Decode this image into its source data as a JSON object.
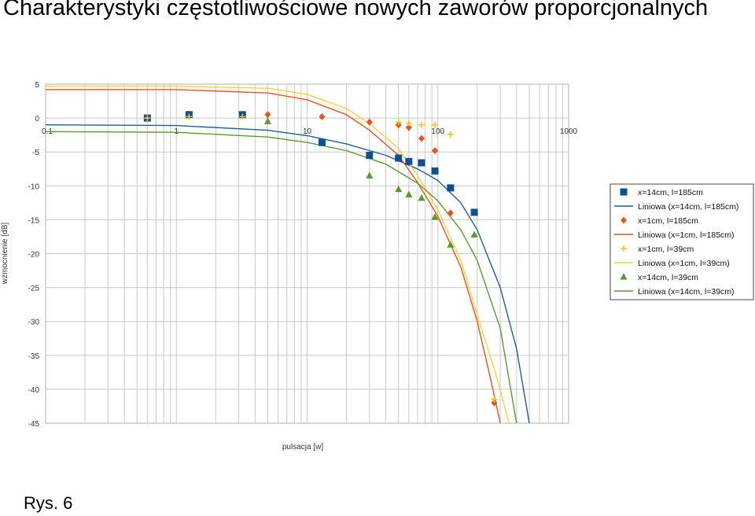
{
  "title": "Charakterystyki częstotliwościowe nowych zaworów proporcjonalnych",
  "caption": "Rys. 6",
  "chart_data": {
    "type": "scatter",
    "xlabel": "pulsacja [w]",
    "ylabel": "wzmocnienie [dB]",
    "xscale": "log",
    "xlim": [
      0.1,
      1000
    ],
    "ylim": [
      -45,
      5
    ],
    "x_ticks": [
      "0.1",
      "1",
      "10",
      "100",
      "1000"
    ],
    "y_ticks": [
      "5",
      "0",
      "-5",
      "-10",
      "-15",
      "-20",
      "-25",
      "-30",
      "-35",
      "-40",
      "-45"
    ],
    "grid": true,
    "legend_position": "right",
    "series": [
      {
        "name": "x=14cm, l=185cm",
        "kind": "points",
        "marker": "square",
        "color": "#0e4f8c",
        "points": [
          [
            0.6,
            0
          ],
          [
            1.25,
            0.5
          ],
          [
            3.2,
            0.5
          ],
          [
            13,
            -3.6
          ],
          [
            30,
            -5.5
          ],
          [
            50,
            -5.9
          ],
          [
            60,
            -6.4
          ],
          [
            75,
            -6.6
          ],
          [
            95,
            -7.8
          ],
          [
            125,
            -10.3
          ],
          [
            190,
            -13.9
          ]
        ]
      },
      {
        "name": "Liniowa (x=14cm, l=185cm)",
        "kind": "line",
        "color": "#1f5e96",
        "points": [
          [
            0.1,
            -1
          ],
          [
            1,
            -1.1
          ],
          [
            5,
            -1.8
          ],
          [
            10,
            -2.6
          ],
          [
            20,
            -3.8
          ],
          [
            40,
            -5.5
          ],
          [
            70,
            -7.5
          ],
          [
            100,
            -9.2
          ],
          [
            150,
            -12.5
          ],
          [
            200,
            -16.5
          ],
          [
            300,
            -25
          ],
          [
            400,
            -34
          ],
          [
            500,
            -45
          ]
        ]
      },
      {
        "name": "x=1cm, l=185cm",
        "kind": "points",
        "marker": "diamond",
        "color": "#e8521c",
        "points": [
          [
            5,
            0.5
          ],
          [
            13,
            0.2
          ],
          [
            30,
            -0.6
          ],
          [
            50,
            -1
          ],
          [
            60,
            -1.4
          ],
          [
            75,
            -3
          ],
          [
            95,
            -4.8
          ],
          [
            125,
            -14
          ],
          [
            270,
            -42
          ]
        ]
      },
      {
        "name": "Liniowa (x=1cm, l=185cm)",
        "kind": "line",
        "color": "#e8521c",
        "points": [
          [
            0.1,
            4.2
          ],
          [
            1,
            4.2
          ],
          [
            5,
            3.7
          ],
          [
            10,
            2.7
          ],
          [
            20,
            0.5
          ],
          [
            30,
            -1.8
          ],
          [
            50,
            -5.5
          ],
          [
            70,
            -9.5
          ],
          [
            100,
            -14.5
          ],
          [
            150,
            -22
          ],
          [
            200,
            -30
          ],
          [
            250,
            -38
          ],
          [
            300,
            -45
          ]
        ]
      },
      {
        "name": "x=1cm, l=39cm",
        "kind": "points",
        "marker": "plus",
        "color": "#f3c60f",
        "points": [
          [
            0.6,
            0
          ],
          [
            1.25,
            0.2
          ],
          [
            3.2,
            0.2
          ],
          [
            50,
            -0.6
          ],
          [
            60,
            -0.8
          ],
          [
            75,
            -1
          ],
          [
            95,
            -1
          ],
          [
            125,
            -2.4
          ],
          [
            270,
            -41.5
          ]
        ]
      },
      {
        "name": "Liniowa (x=1cm, l=39cm)",
        "kind": "line",
        "color": "#f6d23a",
        "points": [
          [
            0.1,
            4.7
          ],
          [
            1,
            4.7
          ],
          [
            5,
            4.4
          ],
          [
            10,
            3.5
          ],
          [
            20,
            1.4
          ],
          [
            30,
            -0.8
          ],
          [
            50,
            -4.5
          ],
          [
            70,
            -8.5
          ],
          [
            100,
            -13.5
          ],
          [
            150,
            -21
          ],
          [
            200,
            -29
          ],
          [
            280,
            -38
          ],
          [
            350,
            -45
          ]
        ]
      },
      {
        "name": "x=14cm, l=39cm",
        "kind": "points",
        "marker": "triangle",
        "color": "#5b9a2a",
        "points": [
          [
            5,
            -0.5
          ],
          [
            30,
            -8.5
          ],
          [
            50,
            -10.5
          ],
          [
            60,
            -11.3
          ],
          [
            75,
            -11.8
          ],
          [
            95,
            -14.6
          ],
          [
            125,
            -18.7
          ],
          [
            190,
            -17.2
          ]
        ]
      },
      {
        "name": "Liniowa (x=14cm, l=39cm)",
        "kind": "line",
        "color": "#5b9a2a",
        "points": [
          [
            0.1,
            -2
          ],
          [
            1,
            -2.1
          ],
          [
            5,
            -2.8
          ],
          [
            10,
            -3.6
          ],
          [
            20,
            -4.8
          ],
          [
            40,
            -6.8
          ],
          [
            70,
            -9.6
          ],
          [
            100,
            -12.2
          ],
          [
            150,
            -16.5
          ],
          [
            200,
            -21
          ],
          [
            300,
            -31
          ],
          [
            400,
            -45
          ]
        ]
      }
    ]
  }
}
